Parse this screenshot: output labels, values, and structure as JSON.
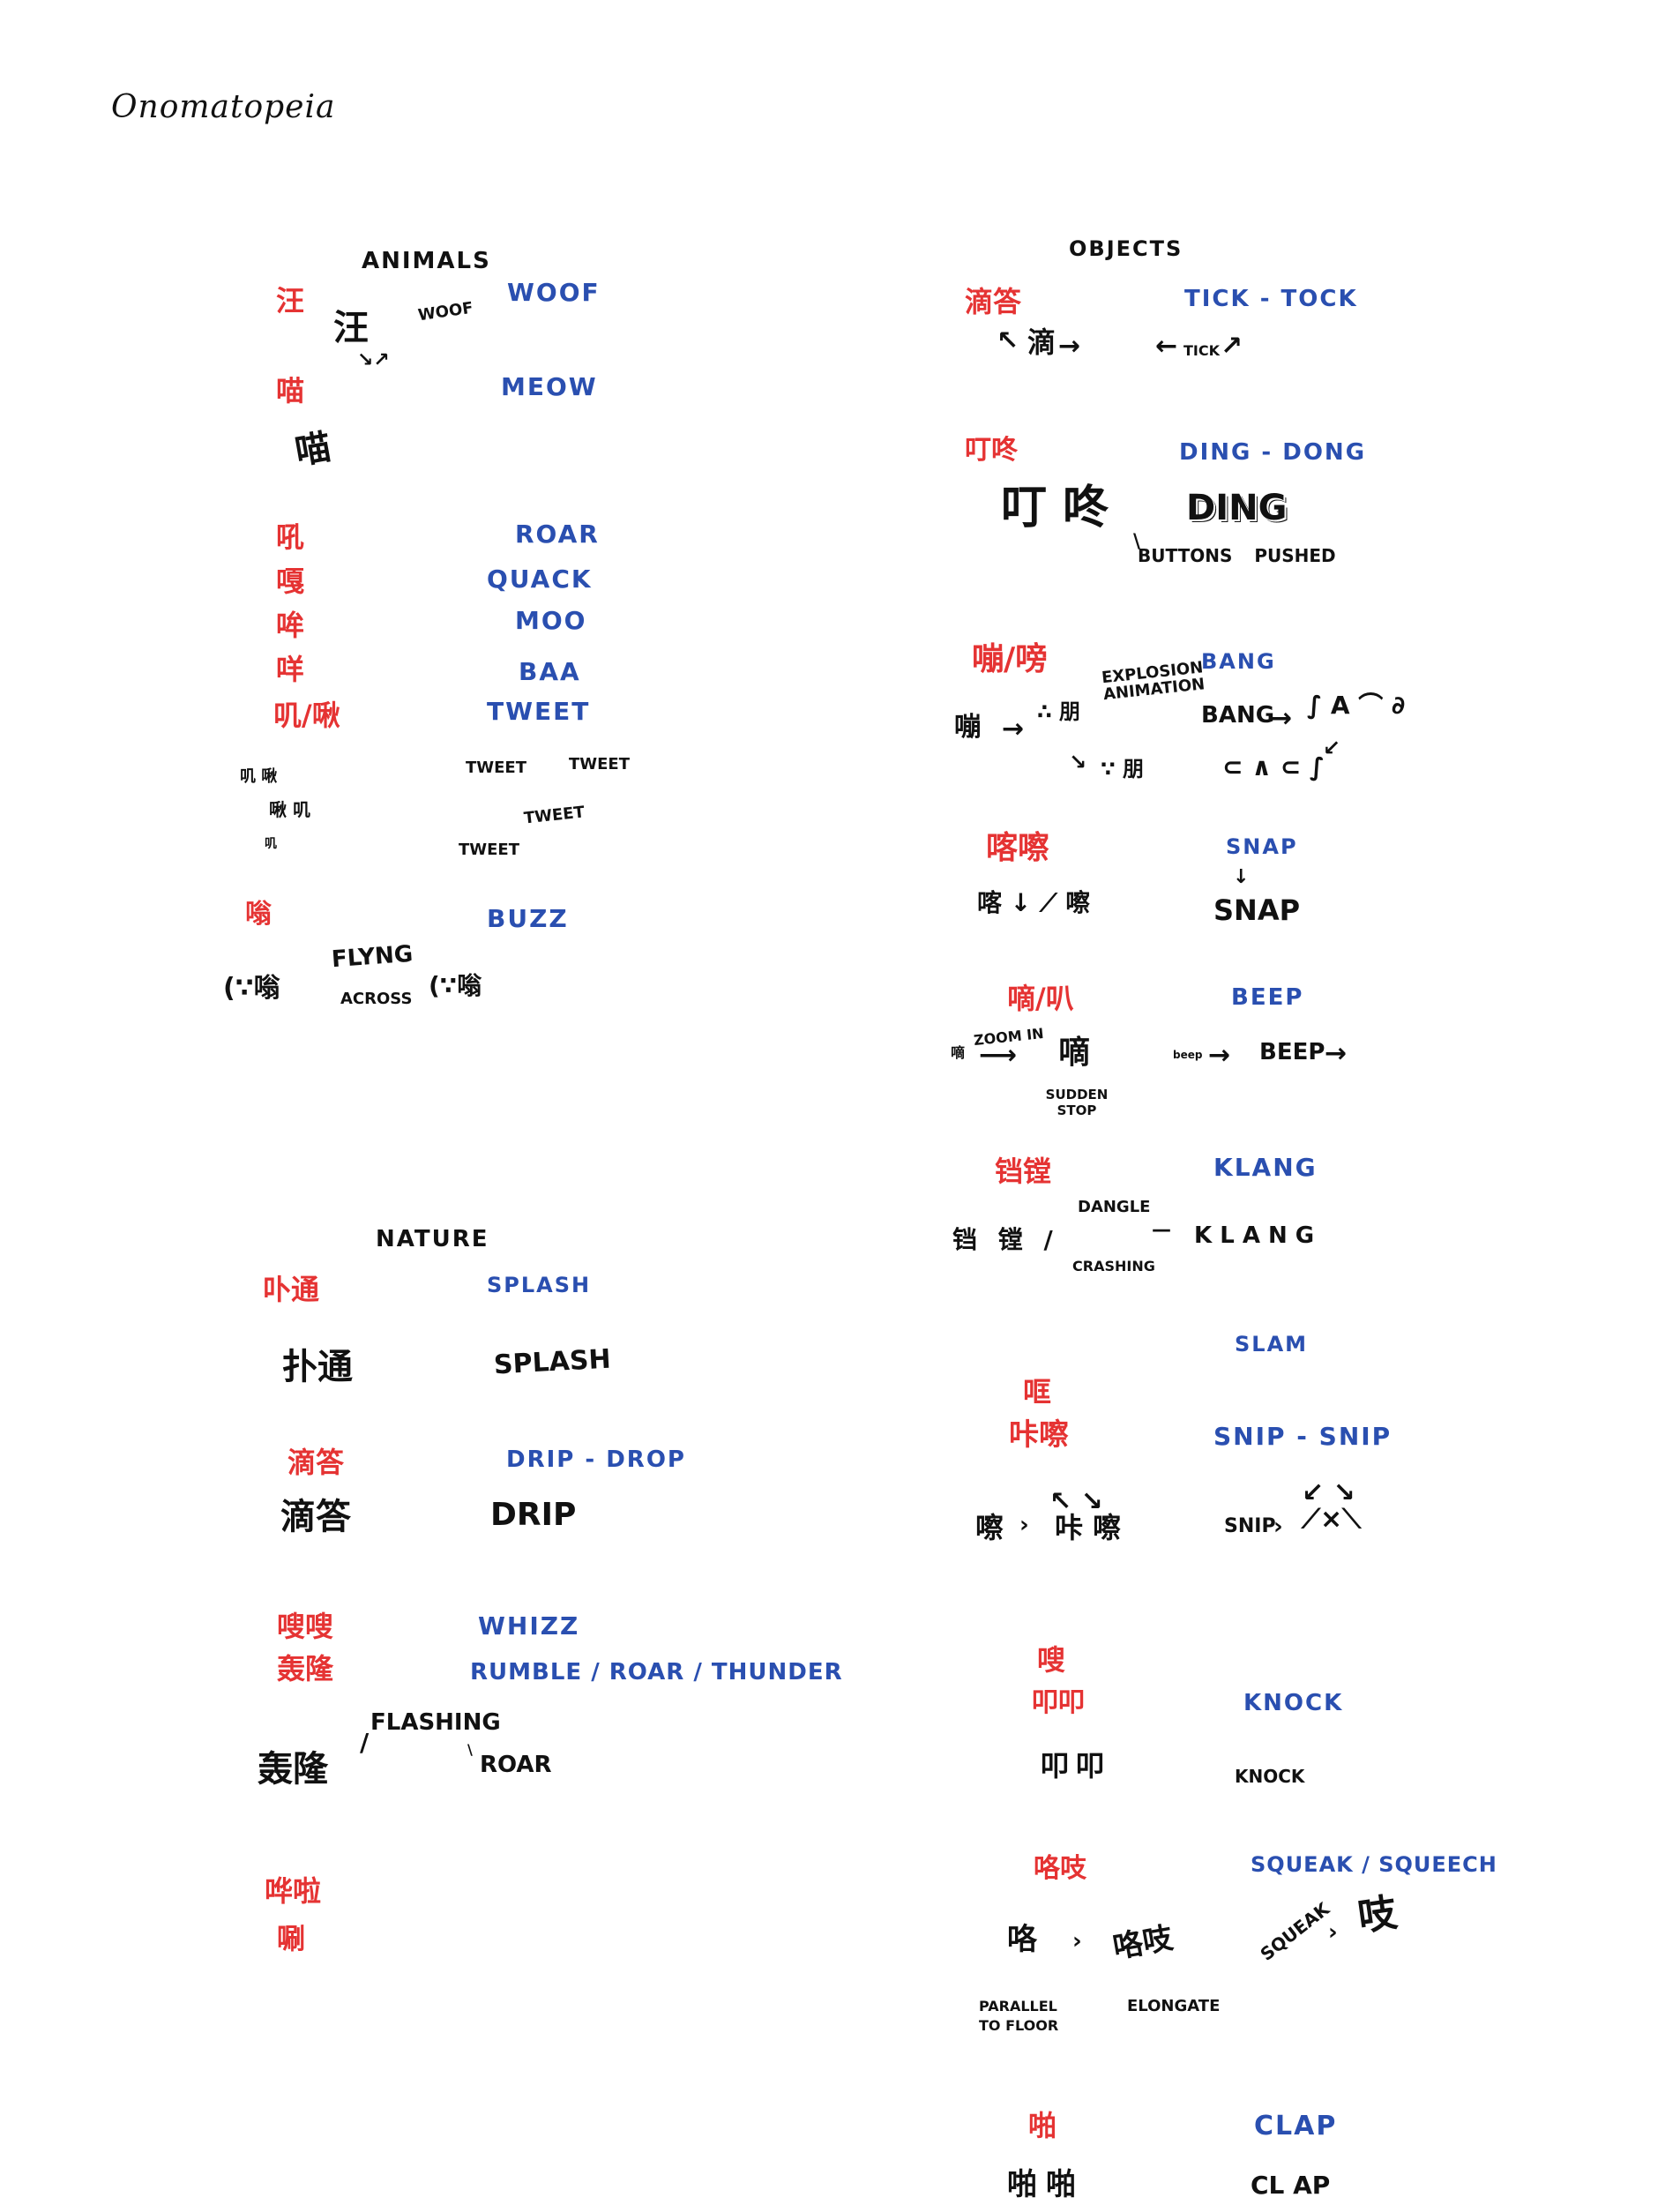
{
  "title": "Onomatopeia",
  "sections": {
    "animals": "ANIMALS",
    "nature": "NATURE",
    "objects": "OBJECTS"
  },
  "animals": {
    "wang_zh": "汪",
    "woof_en": "WOOF",
    "woof_sketch_zh": "汪",
    "woof_sketch_en": "WOOF",
    "miao_zh": "喵",
    "meow_en": "MEOW",
    "miao_sketch": "喵",
    "hou_zh": "吼",
    "roar_en": "ROAR",
    "ga_zh": "嘎",
    "quack_en": "QUACK",
    "mou_zh": "哞",
    "moo_en": "MOO",
    "mie_zh": "咩",
    "baa_en": "BAA",
    "jiji_zh": "叽/啾",
    "tweet_en": "TWEET",
    "tweet_1": "TWEET",
    "tweet_2": "TWEET",
    "tweet_3": "TWEET",
    "tweet_4": "TWEET",
    "weng_zh": "嗡",
    "buzz_en": "BUZZ",
    "flyng": "FLYNG",
    "across": "ACROSS"
  },
  "nature": {
    "putong_zh": "卟通",
    "splash_en": "SPLASH",
    "putong_sketch": "扑通",
    "splash_sketch": "SPLASH",
    "dida_zh": "滴答",
    "drip_drop_en": "DRIP - DROP",
    "dida_sketch": "滴答",
    "drip_sketch": "DRIP",
    "sousou_zh": "嗖嗖",
    "whizz_en": "WHIZZ",
    "honglong_zh": "轰隆",
    "rumble_en": "RUMBLE / ROAR / THUNDER",
    "flashing": "FLASHING",
    "honglong_sketch": "轰隆",
    "roar_sketch": "ROAR",
    "huala_zh": "哗啦",
    "shua_zh": "唰"
  },
  "objects": {
    "dida_zh": "滴答",
    "ticktock_en": "TICK - TOCK",
    "di_sketch": "滴",
    "tick_sketch": "TICK",
    "dingdong_zh": "叮咚",
    "dingdong_en": "DING - DONG",
    "dingdong_sketch": "叮咚",
    "ding_sketch": "DING",
    "buttons_pushed": "BUTTONS PUSHED",
    "pengpang_zh": "嘣/嗙",
    "bang_en": "BANG",
    "explosion": "EXPLOSION ANIMATION",
    "peng_sketch": "嘣",
    "bang_sketch": "BANG",
    "kacha_zh": "喀嚓",
    "snap_en": "SNAP",
    "snap_sketch": "SNAP",
    "di_zh": "嘀/叭",
    "beep_en": "BEEP",
    "zoom_in": "ZOOM IN",
    "sudden_stop": "SUDDEN STOP",
    "beep_sketch": "BEEP",
    "dangle": "DANGLE",
    "crashing": "CRASHING",
    "kuangdang_zh": "铛镗",
    "klang_en": "KLANG",
    "klang_sketch": "K L A N G",
    "slam_en": "SLAM",
    "kuang_zh": "哐",
    "kacha2_zh": "咔嚓",
    "snipsnip_en": "SNIP - SNIP",
    "snip_sketch": "SNIP",
    "sou_zh": "嗖",
    "koukou_zh": "叩叩",
    "knock_en": "KNOCK",
    "koukou_sketch": "叩叩",
    "knock_sketch": "KNOCK",
    "gezhi_zh": "咯吱",
    "squeak_en": "SQUEAK / SQUEECH",
    "parallel": "PARALLEL TO FLOOR",
    "elongate": "ELONGATE",
    "squeak_sketch": "SQUEAK",
    "pa_zh": "啪",
    "clap_en": "CLAP",
    "papa_sketch": "啪啪",
    "clap_sketch": "CL AP"
  }
}
